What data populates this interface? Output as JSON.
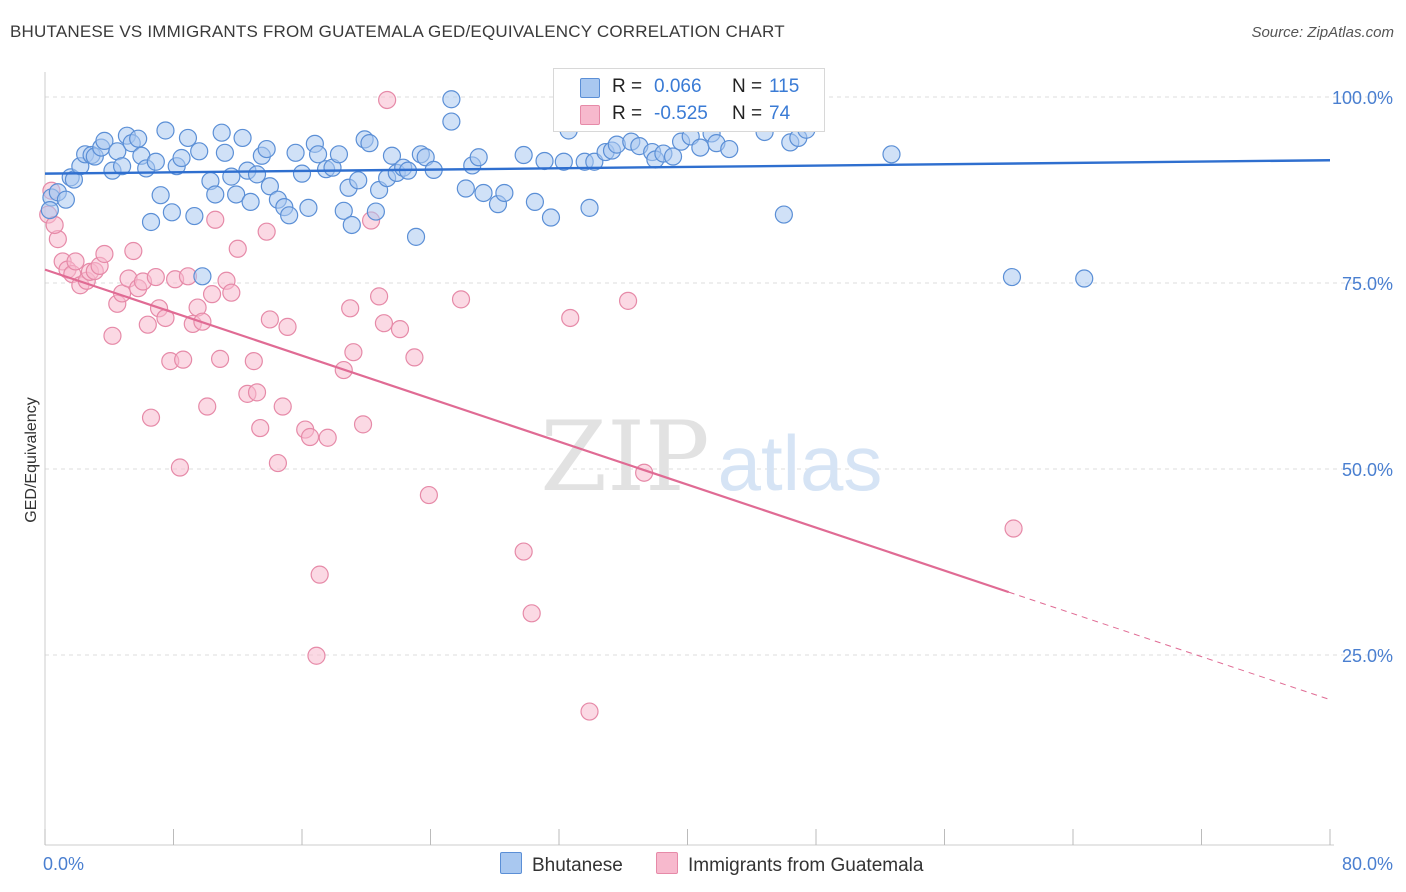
{
  "title": "BHUTANESE VS IMMIGRANTS FROM GUATEMALA GED/EQUIVALENCY CORRELATION CHART",
  "source": "Source: ZipAtlas.com",
  "watermark": {
    "zip": "ZIP",
    "atlas": "atlas"
  },
  "colors": {
    "blue_fill": "#a9c8f0",
    "blue_stroke": "#5b8fd6",
    "blue_line": "#2f6fcf",
    "pink_fill": "#f7b9cd",
    "pink_stroke": "#e68aa8",
    "pink_line": "#e06b94",
    "tick_text": "#4a7fd0",
    "grid": "#dddddd"
  },
  "legend": {
    "r_label": "R =",
    "n_label": "N =",
    "rows": [
      {
        "r": "0.066",
        "n": "115"
      },
      {
        "r": "-0.525",
        "n": "74"
      }
    ]
  },
  "chart_data": {
    "type": "scatter",
    "title": "BHUTANESE VS IMMIGRANTS FROM GUATEMALA GED/EQUIVALENCY CORRELATION CHART",
    "xlabel": "",
    "ylabel": "GED/Equivalency",
    "xlim": [
      0,
      80
    ],
    "ylim": [
      0,
      102
    ],
    "x_tick_labels": [
      "0.0%",
      "80.0%"
    ],
    "y_ticks": [
      25,
      50,
      75,
      100
    ],
    "y_tick_labels": [
      "25.0%",
      "50.0%",
      "75.0%",
      "100.0%"
    ],
    "grid": true,
    "legend_placement": "top-center",
    "series": [
      {
        "name": "Bhutanese",
        "r": 0.066,
        "n": 115,
        "trend": {
          "x": [
            0,
            80
          ],
          "y": [
            89.7,
            91.5
          ],
          "dashed_from": null
        },
        "points": [
          [
            0.4,
            86.5
          ],
          [
            0.8,
            87.2
          ],
          [
            1.3,
            86.2
          ],
          [
            1.6,
            89.2
          ],
          [
            1.8,
            88.9
          ],
          [
            2.2,
            90.7
          ],
          [
            2.5,
            92.3
          ],
          [
            2.9,
            92.2
          ],
          [
            3.1,
            92.0
          ],
          [
            3.5,
            93.2
          ],
          [
            3.7,
            94.1
          ],
          [
            4.2,
            90.1
          ],
          [
            4.5,
            92.7
          ],
          [
            4.8,
            90.7
          ],
          [
            5.1,
            94.8
          ],
          [
            5.4,
            93.8
          ],
          [
            5.8,
            94.4
          ],
          [
            6.0,
            92.1
          ],
          [
            6.3,
            90.4
          ],
          [
            6.6,
            83.2
          ],
          [
            6.9,
            91.3
          ],
          [
            7.2,
            86.8
          ],
          [
            7.5,
            95.5
          ],
          [
            7.9,
            84.5
          ],
          [
            8.2,
            90.7
          ],
          [
            8.5,
            91.8
          ],
          [
            8.9,
            94.5
          ],
          [
            9.3,
            84.0
          ],
          [
            9.6,
            92.7
          ],
          [
            9.8,
            75.9
          ],
          [
            10.3,
            88.7
          ],
          [
            10.6,
            86.9
          ],
          [
            11.0,
            95.2
          ],
          [
            11.2,
            92.5
          ],
          [
            11.6,
            89.3
          ],
          [
            11.9,
            86.9
          ],
          [
            12.3,
            94.5
          ],
          [
            12.6,
            90.1
          ],
          [
            12.8,
            85.9
          ],
          [
            13.2,
            89.6
          ],
          [
            13.5,
            92.1
          ],
          [
            13.8,
            93.0
          ],
          [
            14.0,
            88.0
          ],
          [
            14.5,
            86.2
          ],
          [
            14.9,
            85.2
          ],
          [
            15.2,
            84.1
          ],
          [
            15.6,
            92.5
          ],
          [
            16.0,
            89.7
          ],
          [
            16.4,
            85.1
          ],
          [
            16.8,
            93.7
          ],
          [
            17.0,
            92.3
          ],
          [
            17.5,
            90.3
          ],
          [
            17.9,
            90.5
          ],
          [
            18.3,
            92.3
          ],
          [
            18.6,
            84.7
          ],
          [
            18.9,
            87.8
          ],
          [
            19.1,
            82.8
          ],
          [
            19.5,
            88.8
          ],
          [
            19.9,
            94.3
          ],
          [
            20.2,
            93.8
          ],
          [
            20.6,
            84.6
          ],
          [
            20.8,
            87.5
          ],
          [
            21.3,
            89.1
          ],
          [
            21.6,
            92.1
          ],
          [
            21.9,
            89.8
          ],
          [
            22.3,
            90.5
          ],
          [
            22.6,
            90.1
          ],
          [
            23.1,
            81.2
          ],
          [
            23.4,
            92.3
          ],
          [
            23.7,
            91.9
          ],
          [
            24.2,
            90.2
          ],
          [
            25.3,
            99.7
          ],
          [
            25.3,
            96.7
          ],
          [
            26.2,
            87.7
          ],
          [
            26.6,
            90.8
          ],
          [
            27.0,
            91.9
          ],
          [
            27.3,
            87.1
          ],
          [
            28.2,
            85.6
          ],
          [
            28.6,
            87.1
          ],
          [
            29.8,
            92.2
          ],
          [
            30.5,
            85.9
          ],
          [
            31.1,
            91.4
          ],
          [
            31.5,
            83.8
          ],
          [
            32.3,
            91.3
          ],
          [
            32.6,
            95.5
          ],
          [
            33.6,
            91.3
          ],
          [
            33.9,
            85.1
          ],
          [
            34.2,
            91.3
          ],
          [
            34.9,
            92.6
          ],
          [
            35.3,
            92.8
          ],
          [
            35.6,
            93.6
          ],
          [
            36.5,
            94.0
          ],
          [
            37.0,
            93.4
          ],
          [
            37.8,
            92.6
          ],
          [
            38.0,
            91.6
          ],
          [
            38.5,
            92.4
          ],
          [
            39.1,
            92.0
          ],
          [
            39.6,
            94.0
          ],
          [
            40.2,
            94.7
          ],
          [
            40.8,
            93.2
          ],
          [
            41.5,
            95.1
          ],
          [
            41.8,
            93.8
          ],
          [
            42.6,
            93.0
          ],
          [
            43.2,
            97.3
          ],
          [
            43.7,
            99.8
          ],
          [
            44.8,
            95.3
          ],
          [
            45.3,
            97.1
          ],
          [
            46.4,
            93.9
          ],
          [
            46.9,
            94.5
          ],
          [
            47.4,
            95.6
          ],
          [
            46.0,
            84.2
          ],
          [
            52.7,
            92.3
          ],
          [
            60.2,
            75.8
          ],
          [
            64.7,
            75.6
          ],
          [
            0.3,
            84.8
          ]
        ]
      },
      {
        "name": "Immigrants from Guatemala",
        "r": -0.525,
        "n": 74,
        "trend": {
          "x": [
            0,
            80
          ],
          "y": [
            76.8,
            19.0
          ],
          "dashed_from": 60
        },
        "points": [
          [
            0.2,
            84.2
          ],
          [
            0.4,
            87.4
          ],
          [
            0.8,
            80.9
          ],
          [
            1.1,
            77.9
          ],
          [
            1.4,
            76.8
          ],
          [
            1.7,
            76.2
          ],
          [
            1.9,
            77.9
          ],
          [
            2.2,
            74.7
          ],
          [
            2.6,
            75.3
          ],
          [
            2.8,
            76.5
          ],
          [
            3.1,
            76.6
          ],
          [
            3.4,
            77.3
          ],
          [
            3.7,
            78.9
          ],
          [
            4.2,
            67.9
          ],
          [
            4.5,
            72.2
          ],
          [
            4.8,
            73.6
          ],
          [
            5.2,
            75.6
          ],
          [
            5.5,
            79.3
          ],
          [
            5.8,
            74.3
          ],
          [
            6.1,
            75.2
          ],
          [
            6.4,
            69.4
          ],
          [
            6.6,
            56.9
          ],
          [
            6.9,
            75.8
          ],
          [
            7.1,
            71.6
          ],
          [
            7.5,
            70.3
          ],
          [
            7.8,
            64.5
          ],
          [
            8.1,
            75.5
          ],
          [
            8.4,
            50.2
          ],
          [
            8.6,
            64.7
          ],
          [
            8.9,
            75.9
          ],
          [
            9.2,
            69.5
          ],
          [
            9.5,
            71.7
          ],
          [
            9.8,
            69.8
          ],
          [
            10.1,
            58.4
          ],
          [
            10.4,
            73.5
          ],
          [
            10.6,
            83.5
          ],
          [
            10.9,
            64.8
          ],
          [
            11.3,
            75.3
          ],
          [
            11.6,
            73.7
          ],
          [
            12.0,
            79.6
          ],
          [
            12.6,
            60.1
          ],
          [
            13.0,
            64.5
          ],
          [
            13.2,
            60.3
          ],
          [
            13.4,
            55.5
          ],
          [
            13.8,
            81.9
          ],
          [
            14.0,
            70.1
          ],
          [
            14.5,
            50.8
          ],
          [
            14.8,
            58.4
          ],
          [
            15.1,
            69.1
          ],
          [
            16.2,
            55.3
          ],
          [
            16.5,
            54.3
          ],
          [
            16.9,
            24.9
          ],
          [
            17.1,
            35.8
          ],
          [
            17.6,
            54.2
          ],
          [
            18.6,
            63.3
          ],
          [
            19.0,
            71.6
          ],
          [
            19.2,
            65.7
          ],
          [
            19.8,
            56.0
          ],
          [
            20.3,
            83.4
          ],
          [
            20.8,
            73.2
          ],
          [
            21.1,
            69.6
          ],
          [
            21.3,
            99.6
          ],
          [
            22.1,
            68.8
          ],
          [
            23.0,
            65.0
          ],
          [
            23.9,
            46.5
          ],
          [
            25.9,
            72.8
          ],
          [
            29.8,
            38.9
          ],
          [
            30.3,
            30.6
          ],
          [
            32.7,
            70.3
          ],
          [
            33.9,
            17.4
          ],
          [
            36.3,
            72.6
          ],
          [
            37.3,
            49.5
          ],
          [
            60.3,
            42.0
          ],
          [
            0.6,
            82.8
          ]
        ]
      }
    ]
  },
  "bottom_legend": [
    {
      "label": "Bhutanese"
    },
    {
      "label": "Immigrants from Guatemala"
    }
  ]
}
